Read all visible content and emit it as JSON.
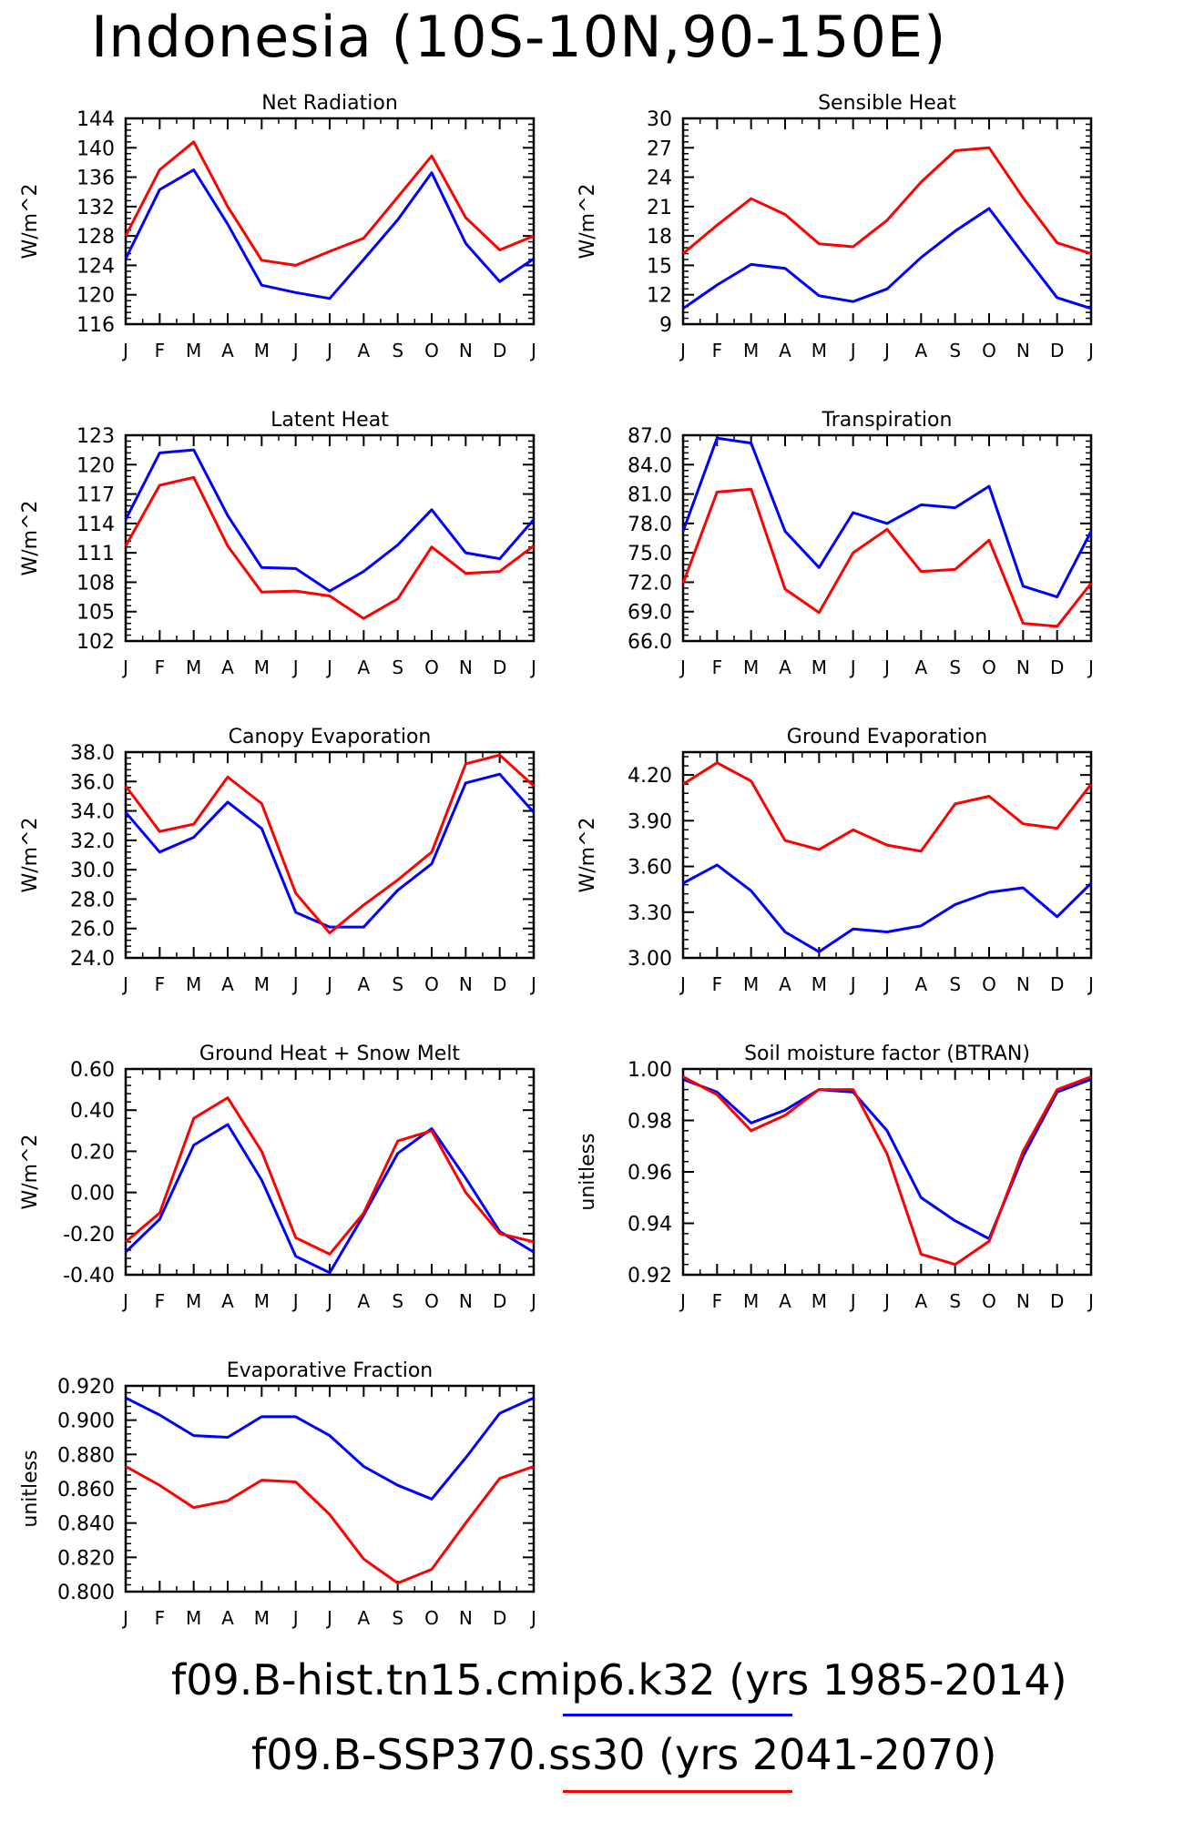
{
  "title": "Indonesia (10S-10N,90-150E)",
  "months": [
    "J",
    "F",
    "M",
    "A",
    "M",
    "J",
    "J",
    "A",
    "S",
    "O",
    "N",
    "D",
    "J"
  ],
  "legend": {
    "case1": {
      "name": "f09.B-hist.tn15.cmip6.k32",
      "years": "(yrs 1985-2014)",
      "color": "#0000ff"
    },
    "case2": {
      "name": "f09.B-SSP370.ss30",
      "years": "(yrs 2041-2070)",
      "color": "#ff0000"
    }
  },
  "chart_data": [
    {
      "type": "line",
      "title": "Net Radiation",
      "ylabel": "W/m^2",
      "ylim": [
        116,
        144
      ],
      "yticks": [
        116,
        120,
        124,
        128,
        132,
        136,
        140,
        144
      ],
      "ytick_decimals": 0,
      "categories": [
        "J",
        "F",
        "M",
        "A",
        "M",
        "J",
        "J",
        "A",
        "S",
        "O",
        "N",
        "D",
        "J"
      ],
      "series": [
        {
          "color": "#0000ff",
          "values": [
            124.9,
            134.3,
            137.0,
            129.6,
            121.3,
            120.3,
            119.5,
            124.8,
            130.2,
            136.6,
            127.0,
            121.8,
            124.9
          ]
        },
        {
          "color": "#ff0000",
          "values": [
            128.0,
            137.0,
            140.8,
            132.0,
            124.7,
            124.0,
            125.9,
            127.7,
            133.3,
            138.9,
            130.5,
            126.1,
            128.0
          ]
        }
      ]
    },
    {
      "type": "line",
      "title": "Sensible Heat",
      "ylabel": "W/m^2",
      "ylim": [
        9,
        30
      ],
      "yticks": [
        9,
        12,
        15,
        18,
        21,
        24,
        27,
        30
      ],
      "ytick_decimals": 0,
      "categories": [
        "J",
        "F",
        "M",
        "A",
        "M",
        "J",
        "J",
        "A",
        "S",
        "O",
        "N",
        "D",
        "J"
      ],
      "series": [
        {
          "color": "#0000ff",
          "values": [
            10.6,
            13.0,
            15.1,
            14.7,
            11.9,
            11.3,
            12.6,
            15.8,
            18.5,
            20.8,
            16.2,
            11.7,
            10.6
          ]
        },
        {
          "color": "#ff0000",
          "values": [
            16.2,
            19.1,
            21.8,
            20.2,
            17.2,
            16.9,
            19.6,
            23.5,
            26.7,
            27.0,
            21.9,
            17.3,
            16.2
          ]
        }
      ]
    },
    {
      "type": "line",
      "title": "Latent Heat",
      "ylabel": "W/m^2",
      "ylim": [
        102,
        123
      ],
      "yticks": [
        102,
        105,
        108,
        111,
        114,
        117,
        120,
        123
      ],
      "ytick_decimals": 0,
      "categories": [
        "J",
        "F",
        "M",
        "A",
        "M",
        "J",
        "J",
        "A",
        "S",
        "O",
        "N",
        "D",
        "J"
      ],
      "series": [
        {
          "color": "#0000ff",
          "values": [
            114.4,
            121.2,
            121.5,
            114.8,
            109.5,
            109.4,
            107.1,
            109.1,
            111.8,
            115.4,
            111.0,
            110.4,
            114.4
          ]
        },
        {
          "color": "#ff0000",
          "values": [
            111.7,
            117.9,
            118.7,
            111.7,
            107.0,
            107.1,
            106.6,
            104.3,
            106.3,
            111.6,
            108.9,
            109.1,
            111.7
          ]
        }
      ]
    },
    {
      "type": "line",
      "title": "Transpiration",
      "ylabel": "",
      "ylim": [
        66,
        87
      ],
      "yticks": [
        66,
        69,
        72,
        75,
        78,
        81,
        84,
        87
      ],
      "ytick_decimals": 1,
      "categories": [
        "J",
        "F",
        "M",
        "A",
        "M",
        "J",
        "J",
        "A",
        "S",
        "O",
        "N",
        "D",
        "J"
      ],
      "series": [
        {
          "color": "#0000ff",
          "values": [
            77.2,
            86.7,
            86.2,
            77.2,
            73.5,
            79.1,
            78.0,
            79.9,
            79.6,
            81.8,
            71.6,
            70.5,
            77.2
          ]
        },
        {
          "color": "#ff0000",
          "values": [
            71.9,
            81.2,
            81.5,
            71.3,
            68.9,
            75.0,
            77.4,
            73.1,
            73.3,
            76.3,
            67.8,
            67.5,
            71.9
          ]
        }
      ]
    },
    {
      "type": "line",
      "title": "Canopy Evaporation",
      "ylabel": "W/m^2",
      "ylim": [
        24,
        38
      ],
      "yticks": [
        24,
        26,
        28,
        30,
        32,
        34,
        36,
        38
      ],
      "ytick_decimals": 1,
      "categories": [
        "J",
        "F",
        "M",
        "A",
        "M",
        "J",
        "J",
        "A",
        "S",
        "O",
        "N",
        "D",
        "J"
      ],
      "series": [
        {
          "color": "#0000ff",
          "values": [
            33.9,
            31.2,
            32.2,
            34.6,
            32.8,
            27.1,
            26.1,
            26.1,
            28.6,
            30.4,
            35.9,
            36.5,
            33.9
          ]
        },
        {
          "color": "#ff0000",
          "values": [
            35.7,
            32.6,
            33.1,
            36.3,
            34.5,
            28.4,
            25.7,
            27.6,
            29.3,
            31.2,
            37.2,
            37.8,
            35.7
          ]
        }
      ]
    },
    {
      "type": "line",
      "title": "Ground Evaporation",
      "ylabel": "W/m^2",
      "ylim": [
        3.0,
        4.35
      ],
      "yticks": [
        3.0,
        3.3,
        3.6,
        3.9,
        4.2
      ],
      "ytick_decimals": 2,
      "categories": [
        "J",
        "F",
        "M",
        "A",
        "M",
        "J",
        "J",
        "A",
        "S",
        "O",
        "N",
        "D",
        "J"
      ],
      "series": [
        {
          "color": "#0000ff",
          "values": [
            3.49,
            3.61,
            3.44,
            3.17,
            3.04,
            3.19,
            3.17,
            3.21,
            3.35,
            3.43,
            3.46,
            3.27,
            3.49
          ]
        },
        {
          "color": "#ff0000",
          "values": [
            4.14,
            4.28,
            4.16,
            3.77,
            3.71,
            3.84,
            3.74,
            3.7,
            4.01,
            4.06,
            3.88,
            3.85,
            4.14
          ]
        }
      ]
    },
    {
      "type": "line",
      "title": "Ground Heat + Snow Melt",
      "ylabel": "W/m^2",
      "ylim": [
        -0.4,
        0.6
      ],
      "yticks": [
        -0.4,
        -0.2,
        0.0,
        0.2,
        0.4,
        0.6
      ],
      "ytick_decimals": 2,
      "categories": [
        "J",
        "F",
        "M",
        "A",
        "M",
        "J",
        "J",
        "A",
        "S",
        "O",
        "N",
        "D",
        "J"
      ],
      "series": [
        {
          "color": "#0000ff",
          "values": [
            -0.29,
            -0.13,
            0.23,
            0.33,
            0.06,
            -0.31,
            -0.39,
            -0.11,
            0.19,
            0.31,
            0.07,
            -0.19,
            -0.29
          ]
        },
        {
          "color": "#ff0000",
          "values": [
            -0.24,
            -0.1,
            0.36,
            0.46,
            0.2,
            -0.22,
            -0.3,
            -0.1,
            0.25,
            0.3,
            0.0,
            -0.2,
            -0.24
          ]
        }
      ]
    },
    {
      "type": "line",
      "title": "Soil moisture factor (BTRAN)",
      "ylabel": "unitless",
      "ylim": [
        0.92,
        1.0
      ],
      "yticks": [
        0.92,
        0.94,
        0.96,
        0.98,
        1.0
      ],
      "ytick_decimals": 2,
      "categories": [
        "J",
        "F",
        "M",
        "A",
        "M",
        "J",
        "J",
        "A",
        "S",
        "O",
        "N",
        "D",
        "J"
      ],
      "series": [
        {
          "color": "#0000ff",
          "values": [
            0.996,
            0.991,
            0.979,
            0.984,
            0.992,
            0.991,
            0.976,
            0.95,
            0.941,
            0.934,
            0.966,
            0.991,
            0.996
          ]
        },
        {
          "color": "#ff0000",
          "values": [
            0.997,
            0.99,
            0.976,
            0.982,
            0.992,
            0.992,
            0.967,
            0.928,
            0.924,
            0.933,
            0.968,
            0.992,
            0.997
          ]
        }
      ]
    },
    {
      "type": "line",
      "title": "Evaporative Fraction",
      "ylabel": "unitless",
      "ylim": [
        0.8,
        0.92
      ],
      "yticks": [
        0.8,
        0.82,
        0.84,
        0.86,
        0.88,
        0.9,
        0.92
      ],
      "ytick_decimals": 3,
      "categories": [
        "J",
        "F",
        "M",
        "A",
        "M",
        "J",
        "J",
        "A",
        "S",
        "O",
        "N",
        "D",
        "J"
      ],
      "series": [
        {
          "color": "#0000ff",
          "values": [
            0.913,
            0.903,
            0.891,
            0.89,
            0.902,
            0.902,
            0.891,
            0.873,
            0.862,
            0.854,
            0.878,
            0.904,
            0.913
          ]
        },
        {
          "color": "#ff0000",
          "values": [
            0.873,
            0.862,
            0.849,
            0.853,
            0.865,
            0.864,
            0.845,
            0.819,
            0.805,
            0.813,
            0.84,
            0.866,
            0.873
          ]
        }
      ]
    }
  ]
}
